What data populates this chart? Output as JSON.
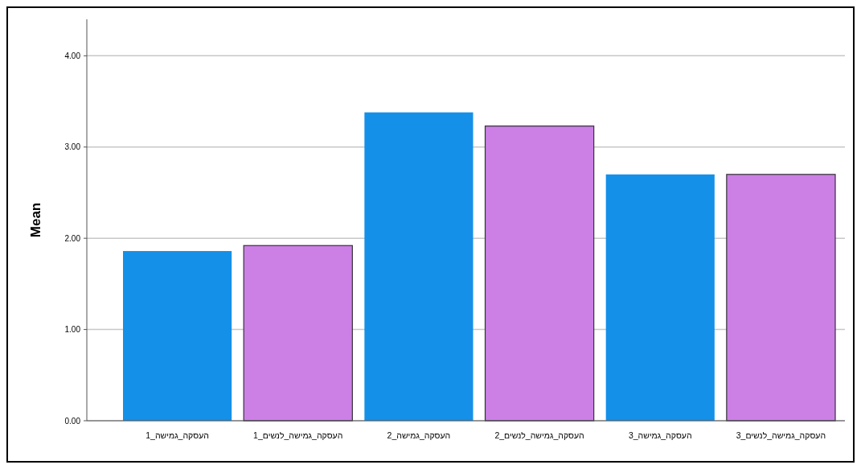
{
  "chart_data": {
    "type": "bar",
    "ylabel": "Mean",
    "categories": [
      "העסקה_גמישה_1",
      "העסקה_גמישה_לנשים_1",
      "העסקה_גמישה_2",
      "העסקה_גמישה_לנשים_2",
      "העסקה_גמישה_3",
      "העסקה_גמישה_לנשים_3"
    ],
    "values": [
      1.86,
      1.92,
      3.38,
      3.23,
      2.7,
      2.7
    ],
    "colors": [
      "#1490e8",
      "#cc80e6",
      "#1490e8",
      "#cc80e6",
      "#1490e8",
      "#cc80e6"
    ],
    "ylim": [
      0,
      4.4
    ],
    "yticks": [
      {
        "value": 0,
        "label": "0.00"
      },
      {
        "value": 1,
        "label": "1.00"
      },
      {
        "value": 2,
        "label": "2.00"
      },
      {
        "value": 3,
        "label": "3.00"
      },
      {
        "value": 4,
        "label": "4.00"
      }
    ],
    "grid": "y"
  }
}
